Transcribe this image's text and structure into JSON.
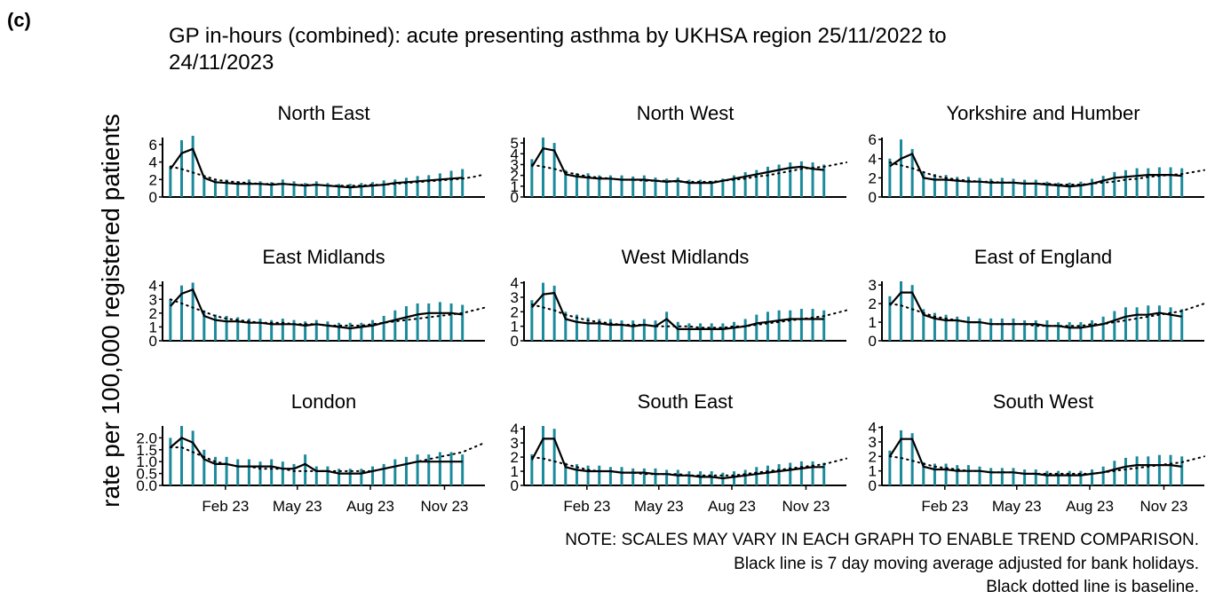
{
  "label": "(c)",
  "title_lines": [
    "GP in-hours (combined): acute presenting asthma by UKHSA region 25/11/2022 to",
    "24/11/2023"
  ],
  "y_label": "rate per 100,000 registered patients",
  "notes": [
    "NOTE: SCALES MAY VARY IN EACH GRAPH TO ENABLE TREND COMPARISON.",
    "Black line is 7 day moving average adjusted for bank holidays.",
    "Black dotted line is baseline."
  ],
  "x": [
    0,
    1,
    2,
    3,
    4,
    5,
    6,
    7,
    8,
    9,
    10,
    11,
    12,
    13,
    14,
    15,
    16,
    17,
    18,
    19,
    20,
    21,
    22,
    23,
    24,
    25,
    26,
    27,
    28
  ],
  "xlim": [
    -0.7,
    28
  ],
  "xticks": [
    {
      "value": 4.9,
      "label": "Feb 23"
    },
    {
      "value": 11.3,
      "label": "May 23"
    },
    {
      "value": 17.8,
      "label": "Aug 23"
    },
    {
      "value": 24.4,
      "label": "Nov 23"
    }
  ],
  "chart_data": [
    {
      "type": "line",
      "title": "North East",
      "ylim": [
        0,
        6.8
      ],
      "yticks": [
        0,
        2,
        4,
        6
      ],
      "series": [
        {
          "style": "spike",
          "color": "#1b8a9b",
          "values": [
            3.5,
            6.5,
            7,
            2.5,
            2,
            2,
            1.8,
            2,
            1.8,
            1.7,
            2,
            1.8,
            1.6,
            1.8,
            1.6,
            1.5,
            1.5,
            1.6,
            1.7,
            1.9,
            2,
            2.2,
            2.4,
            2.5,
            2.7,
            3,
            3.2,
            null,
            null
          ]
        },
        {
          "style": "solid",
          "color": "#000000",
          "values": [
            3.2,
            5,
            5.5,
            2.2,
            1.7,
            1.6,
            1.5,
            1.5,
            1.5,
            1.4,
            1.5,
            1.4,
            1.3,
            1.4,
            1.3,
            1.2,
            1.1,
            1.2,
            1.3,
            1.4,
            1.6,
            1.7,
            1.8,
            1.9,
            2,
            2.1,
            2.2,
            null,
            null
          ]
        },
        {
          "style": "dotted",
          "color": "#000000",
          "values": [
            3.5,
            3.2,
            2.8,
            2.4,
            2.0,
            1.8,
            1.7,
            1.6,
            1.5,
            1.5,
            1.5,
            1.4,
            1.4,
            1.4,
            1.3,
            1.3,
            1.3,
            1.3,
            1.4,
            1.4,
            1.5,
            1.6,
            1.7,
            1.8,
            1.9,
            2.0,
            2.1,
            2.3,
            2.6
          ]
        }
      ]
    },
    {
      "type": "line",
      "title": "North West",
      "ylim": [
        0,
        5.5
      ],
      "yticks": [
        0,
        1,
        2,
        3,
        4,
        5
      ],
      "series": [
        {
          "style": "spike",
          "color": "#1b8a9b",
          "values": [
            3.5,
            5.5,
            5,
            2.5,
            2.2,
            2.2,
            2,
            2,
            2,
            1.9,
            2,
            1.8,
            1.7,
            1.8,
            1.6,
            1.6,
            1.5,
            1.7,
            2,
            2.3,
            2.5,
            2.8,
            3,
            3.2,
            3.3,
            3.2,
            3,
            null,
            null
          ]
        },
        {
          "style": "solid",
          "color": "#000000",
          "values": [
            2.8,
            4.5,
            4.3,
            2.1,
            1.9,
            1.8,
            1.7,
            1.7,
            1.6,
            1.6,
            1.6,
            1.5,
            1.4,
            1.5,
            1.3,
            1.3,
            1.3,
            1.5,
            1.7,
            1.9,
            2.1,
            2.3,
            2.5,
            2.7,
            2.8,
            2.6,
            2.5,
            null,
            null
          ]
        },
        {
          "style": "dotted",
          "color": "#000000",
          "values": [
            3,
            2.8,
            2.6,
            2.3,
            2.1,
            1.9,
            1.8,
            1.7,
            1.6,
            1.6,
            1.5,
            1.5,
            1.5,
            1.4,
            1.4,
            1.4,
            1.4,
            1.5,
            1.6,
            1.7,
            1.9,
            2,
            2.2,
            2.4,
            2.6,
            2.7,
            2.8,
            3,
            3.2
          ]
        }
      ]
    },
    {
      "type": "line",
      "title": "Yorkshire and Humber",
      "ylim": [
        0,
        6.2
      ],
      "yticks": [
        0,
        2,
        4,
        6
      ],
      "series": [
        {
          "style": "spike",
          "color": "#1b8a9b",
          "values": [
            4,
            6,
            5,
            2.6,
            2.4,
            2.3,
            2.1,
            2.1,
            2,
            1.9,
            2,
            1.9,
            1.8,
            1.8,
            1.6,
            1.5,
            1.5,
            1.6,
            1.9,
            2.2,
            2.6,
            2.8,
            3,
            3,
            3.1,
            3.1,
            3,
            null,
            null
          ]
        },
        {
          "style": "solid",
          "color": "#000000",
          "values": [
            3.2,
            4,
            4.5,
            2,
            1.8,
            1.8,
            1.7,
            1.6,
            1.6,
            1.5,
            1.5,
            1.5,
            1.4,
            1.4,
            1.3,
            1.2,
            1.1,
            1.2,
            1.4,
            1.7,
            2,
            2.1,
            2.2,
            2.3,
            2.3,
            2.3,
            2.2,
            null,
            null
          ]
        },
        {
          "style": "dotted",
          "color": "#000000",
          "values": [
            3.6,
            3.3,
            3,
            2.6,
            2.2,
            2,
            1.8,
            1.7,
            1.6,
            1.6,
            1.5,
            1.5,
            1.4,
            1.4,
            1.4,
            1.3,
            1.3,
            1.3,
            1.4,
            1.5,
            1.6,
            1.8,
            1.9,
            2.1,
            2.2,
            2.3,
            2.4,
            2.6,
            2.8
          ]
        }
      ]
    },
    {
      "type": "line",
      "title": "East Midlands",
      "ylim": [
        0,
        4.3
      ],
      "yticks": [
        0,
        1,
        2,
        3,
        4
      ],
      "series": [
        {
          "style": "spike",
          "color": "#1b8a9b",
          "values": [
            3,
            4,
            4.2,
            2.2,
            1.9,
            1.8,
            1.7,
            1.6,
            1.6,
            1.5,
            1.6,
            1.5,
            1.4,
            1.5,
            1.4,
            1.3,
            1.3,
            1.3,
            1.5,
            1.8,
            2.2,
            2.5,
            2.7,
            2.7,
            2.8,
            2.7,
            2.6,
            null,
            null
          ]
        },
        {
          "style": "solid",
          "color": "#000000",
          "values": [
            2.5,
            3.4,
            3.7,
            1.8,
            1.5,
            1.4,
            1.4,
            1.3,
            1.3,
            1.2,
            1.2,
            1.2,
            1.1,
            1.2,
            1.1,
            1,
            0.9,
            1,
            1.1,
            1.3,
            1.5,
            1.7,
            1.9,
            2,
            2,
            2,
            1.9,
            null,
            null
          ]
        },
        {
          "style": "dotted",
          "color": "#000000",
          "values": [
            3,
            2.7,
            2.4,
            2.1,
            1.8,
            1.6,
            1.5,
            1.4,
            1.3,
            1.3,
            1.3,
            1.2,
            1.2,
            1.2,
            1.1,
            1.1,
            1.1,
            1.1,
            1.2,
            1.3,
            1.4,
            1.5,
            1.6,
            1.7,
            1.8,
            1.9,
            2,
            2.2,
            2.4
          ]
        }
      ]
    },
    {
      "type": "line",
      "title": "West Midlands",
      "ylim": [
        0,
        4.1
      ],
      "yticks": [
        0,
        1,
        2,
        3,
        4
      ],
      "series": [
        {
          "style": "spike",
          "color": "#1b8a9b",
          "values": [
            2.8,
            4,
            3.8,
            2,
            1.8,
            1.6,
            1.5,
            1.5,
            1.4,
            1.4,
            1.5,
            1.4,
            2,
            1.3,
            1.2,
            1.2,
            1.2,
            1.2,
            1.3,
            1.5,
            1.8,
            2,
            2.1,
            2.1,
            2.2,
            2.2,
            2.1,
            null,
            null
          ]
        },
        {
          "style": "solid",
          "color": "#000000",
          "values": [
            2.3,
            3.2,
            3.3,
            1.5,
            1.3,
            1.2,
            1.2,
            1.1,
            1.1,
            1.0,
            1.1,
            1.0,
            1.5,
            0.8,
            0.8,
            0.8,
            0.8,
            0.8,
            0.9,
            1,
            1.2,
            1.3,
            1.4,
            1.5,
            1.5,
            1.5,
            1.5,
            null,
            null
          ]
        },
        {
          "style": "dotted",
          "color": "#000000",
          "values": [
            2.5,
            2.3,
            2.1,
            1.8,
            1.6,
            1.4,
            1.3,
            1.2,
            1.1,
            1.1,
            1.1,
            1,
            1,
            1,
            1,
            0.9,
            0.9,
            0.9,
            1,
            1,
            1.1,
            1.2,
            1.3,
            1.4,
            1.5,
            1.6,
            1.7,
            1.9,
            2.1
          ]
        }
      ]
    },
    {
      "type": "line",
      "title": "East of England",
      "ylim": [
        0,
        3.2
      ],
      "yticks": [
        0,
        1,
        2,
        3
      ],
      "series": [
        {
          "style": "spike",
          "color": "#1b8a9b",
          "values": [
            2.4,
            3.2,
            3,
            1.7,
            1.5,
            1.4,
            1.3,
            1.3,
            1.2,
            1.2,
            1.2,
            1.2,
            1.1,
            1.1,
            1.1,
            1,
            1,
            1,
            1.1,
            1.3,
            1.6,
            1.8,
            1.8,
            1.9,
            1.9,
            1.8,
            1.7,
            null,
            null
          ]
        },
        {
          "style": "solid",
          "color": "#000000",
          "values": [
            1.9,
            2.6,
            2.6,
            1.4,
            1.2,
            1.1,
            1.1,
            1,
            1,
            0.9,
            0.9,
            0.9,
            0.9,
            0.9,
            0.8,
            0.8,
            0.7,
            0.7,
            0.8,
            0.9,
            1.1,
            1.3,
            1.4,
            1.4,
            1.5,
            1.4,
            1.3,
            null,
            null
          ]
        },
        {
          "style": "dotted",
          "color": "#000000",
          "values": [
            2,
            1.9,
            1.7,
            1.5,
            1.3,
            1.2,
            1.1,
            1,
            1,
            0.9,
            0.9,
            0.9,
            0.9,
            0.8,
            0.8,
            0.8,
            0.8,
            0.8,
            0.9,
            0.9,
            1,
            1.1,
            1.2,
            1.3,
            1.4,
            1.5,
            1.6,
            1.8,
            2
          ]
        }
      ]
    },
    {
      "type": "line",
      "title": "London",
      "ylim": [
        0,
        2.5
      ],
      "yticks": [
        {
          "value": 0,
          "label": "0.0"
        },
        0.5,
        {
          "value": 1,
          "label": "1.0"
        },
        1.5,
        {
          "value": 2,
          "label": "2.0"
        }
      ],
      "series": [
        {
          "style": "spike",
          "color": "#1b8a9b",
          "values": [
            2,
            2.5,
            2.3,
            1.5,
            1.2,
            1.2,
            1.1,
            1.1,
            1,
            1.1,
            1,
            0.9,
            1.3,
            0.8,
            0.8,
            0.7,
            0.7,
            0.7,
            0.8,
            0.9,
            1.1,
            1.2,
            1.3,
            1.3,
            1.4,
            1.4,
            1.3,
            null,
            null
          ]
        },
        {
          "style": "solid",
          "color": "#000000",
          "values": [
            1.6,
            2,
            1.8,
            1.1,
            0.9,
            0.9,
            0.8,
            0.8,
            0.8,
            0.8,
            0.7,
            0.7,
            0.9,
            0.6,
            0.6,
            0.5,
            0.5,
            0.5,
            0.6,
            0.7,
            0.8,
            0.9,
            1,
            1,
            1,
            1,
            1,
            null,
            null
          ]
        },
        {
          "style": "dotted",
          "color": "#000000",
          "values": [
            1.6,
            1.6,
            1.4,
            1.2,
            1,
            0.9,
            0.8,
            0.8,
            0.7,
            0.7,
            0.7,
            0.6,
            0.6,
            0.6,
            0.6,
            0.6,
            0.6,
            0.6,
            0.6,
            0.7,
            0.8,
            0.9,
            1,
            1.1,
            1.2,
            1.3,
            1.4,
            1.6,
            1.8
          ]
        }
      ]
    },
    {
      "type": "line",
      "title": "South East",
      "ylim": [
        0,
        4.2
      ],
      "yticks": [
        0,
        1,
        2,
        3,
        4
      ],
      "series": [
        {
          "style": "spike",
          "color": "#1b8a9b",
          "values": [
            2.2,
            4.2,
            4,
            1.6,
            1.5,
            1.4,
            1.4,
            1.3,
            1.3,
            1.2,
            1.2,
            1.2,
            1.1,
            1.1,
            1,
            1,
            1,
            0.9,
            1,
            1.1,
            1.3,
            1.4,
            1.5,
            1.6,
            1.7,
            1.7,
            1.6,
            null,
            null
          ]
        },
        {
          "style": "solid",
          "color": "#000000",
          "values": [
            1.8,
            3.3,
            3.3,
            1.3,
            1.1,
            1,
            1,
            1,
            0.9,
            0.9,
            0.9,
            0.8,
            0.8,
            0.7,
            0.7,
            0.6,
            0.6,
            0.5,
            0.6,
            0.7,
            0.8,
            0.9,
            1,
            1.1,
            1.2,
            1.3,
            1.3,
            null,
            null
          ]
        },
        {
          "style": "dotted",
          "color": "#000000",
          "values": [
            2,
            1.9,
            1.7,
            1.5,
            1.3,
            1.1,
            1,
            1,
            0.9,
            0.9,
            0.8,
            0.8,
            0.8,
            0.8,
            0.7,
            0.7,
            0.7,
            0.7,
            0.7,
            0.8,
            0.9,
            1,
            1.1,
            1.2,
            1.3,
            1.4,
            1.5,
            1.7,
            1.9
          ]
        }
      ]
    },
    {
      "type": "line",
      "title": "South West",
      "ylim": [
        0,
        4.1
      ],
      "yticks": [
        0,
        1,
        2,
        3,
        4
      ],
      "series": [
        {
          "style": "spike",
          "color": "#1b8a9b",
          "values": [
            2.4,
            3.8,
            3.6,
            1.6,
            1.5,
            1.5,
            1.4,
            1.4,
            1.3,
            1.2,
            1.2,
            1.2,
            1.1,
            1.1,
            1,
            1,
            1,
            1,
            1.1,
            1.3,
            1.7,
            1.9,
            2,
            2,
            2.1,
            2.1,
            2,
            null,
            null
          ]
        },
        {
          "style": "solid",
          "color": "#000000",
          "values": [
            2,
            3.2,
            3.2,
            1.3,
            1.1,
            1.1,
            1,
            1,
            1,
            0.9,
            0.9,
            0.9,
            0.8,
            0.8,
            0.7,
            0.7,
            0.7,
            0.7,
            0.8,
            0.9,
            1.1,
            1.3,
            1.4,
            1.4,
            1.4,
            1.4,
            1.3,
            null,
            null
          ]
        },
        {
          "style": "dotted",
          "color": "#000000",
          "values": [
            2,
            1.9,
            1.7,
            1.5,
            1.3,
            1.2,
            1.1,
            1,
            1,
            0.9,
            0.9,
            0.9,
            0.8,
            0.8,
            0.8,
            0.8,
            0.8,
            0.8,
            0.8,
            0.9,
            1,
            1.1,
            1.2,
            1.3,
            1.4,
            1.5,
            1.6,
            1.8,
            2
          ]
        }
      ]
    }
  ]
}
